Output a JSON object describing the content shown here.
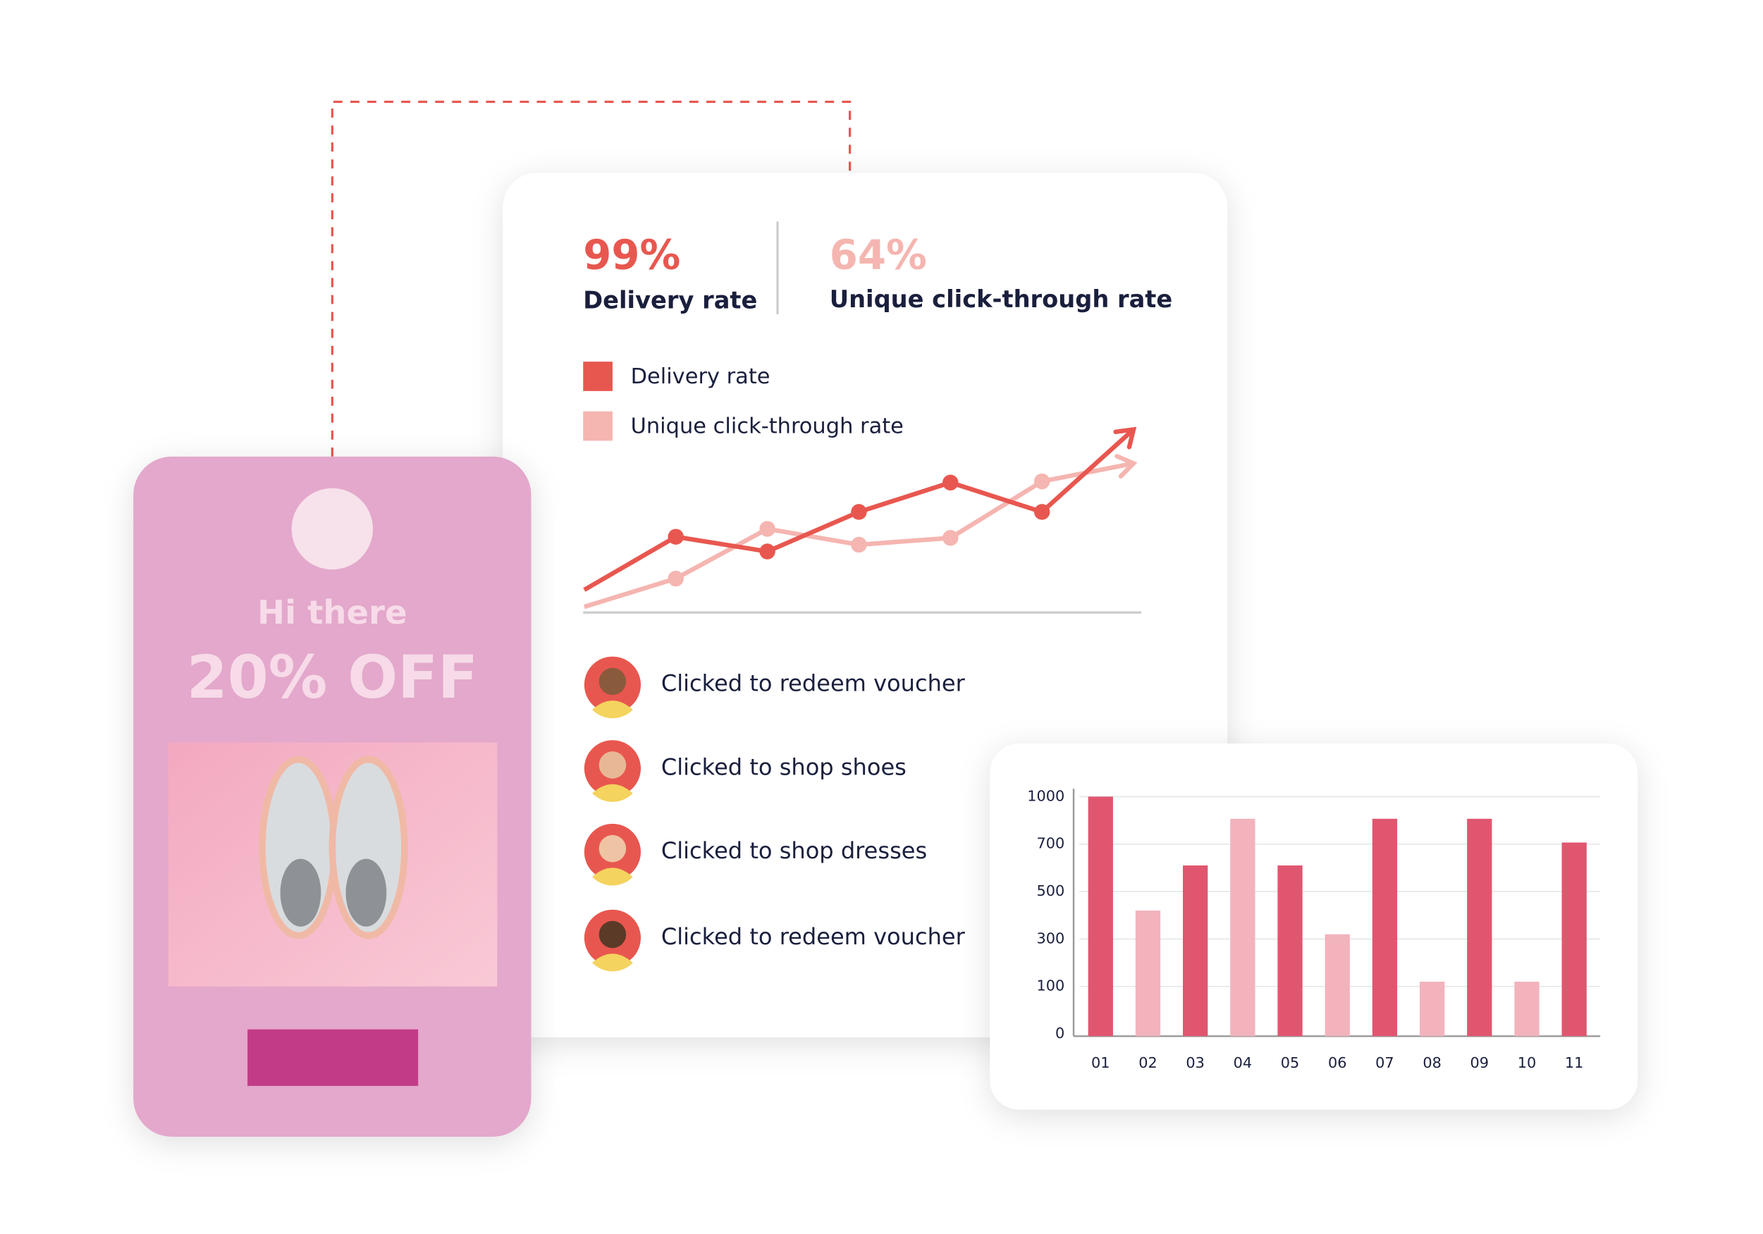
{
  "metrics": [
    {
      "value": "99%",
      "label": "Delivery rate"
    },
    {
      "value": "64%",
      "label": "Unique click-through rate"
    }
  ],
  "line_chart": {
    "type": "line",
    "series": [
      {
        "name": "Delivery rate",
        "color": "#e8574f",
        "values": [
          20,
          67,
          54,
          89,
          115,
          89,
          162
        ]
      },
      {
        "name": "Unique click-through rate",
        "color": "#f5b5b0",
        "values": [
          5,
          30,
          74,
          60,
          66,
          116,
          132
        ]
      }
    ],
    "ylim": [
      0,
      170
    ]
  },
  "activity": [
    "Clicked to redeem voucher",
    "Clicked to shop shoes",
    "Clicked to shop dresses",
    "Clicked to redeem voucher"
  ],
  "bar_chart": {
    "type": "bar",
    "categories": [
      "01",
      "02",
      "03",
      "04",
      "05",
      "06",
      "07",
      "08",
      "09",
      "10",
      "11"
    ],
    "values": [
      1000,
      420,
      610,
      860,
      610,
      320,
      860,
      120,
      860,
      120,
      710
    ],
    "colors": [
      "#e0566f",
      "#f2b3bd",
      "#e0566f",
      "#f2b3bd",
      "#e0566f",
      "#f2b3bd",
      "#e0566f",
      "#f2b3bd",
      "#e0566f",
      "#f2b3bd",
      "#e0566f"
    ],
    "ylim": [
      0,
      1000
    ],
    "yticks": [
      0,
      100,
      300,
      500,
      700,
      1000
    ],
    "grid": true
  },
  "promo": {
    "greeting": "Hi there",
    "offer": "20% OFF"
  }
}
